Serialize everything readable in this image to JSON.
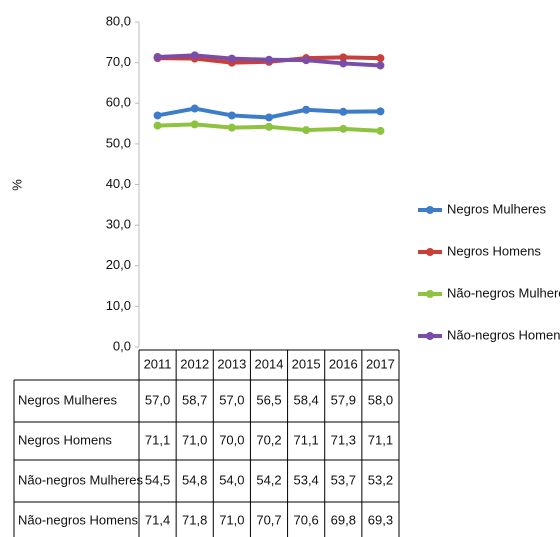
{
  "chart_data": {
    "type": "line",
    "y_label": "%",
    "categories": [
      "2011",
      "2012",
      "2013",
      "2014",
      "2015",
      "2016",
      "2017"
    ],
    "ylim": [
      0,
      80
    ],
    "yticks": [
      {
        "value": 0,
        "label": "0,0"
      },
      {
        "value": 10,
        "label": "10,0"
      },
      {
        "value": 20,
        "label": "20,0"
      },
      {
        "value": 30,
        "label": "30,0"
      },
      {
        "value": 40,
        "label": "40,0"
      },
      {
        "value": 50,
        "label": "50,0"
      },
      {
        "value": 60,
        "label": "60,0"
      },
      {
        "value": 70,
        "label": "70,0"
      },
      {
        "value": 80,
        "label": "80,0"
      }
    ],
    "series": [
      {
        "name": "Negros Mulheres",
        "color": "#3d7cc9",
        "values": [
          57.0,
          58.7,
          57.0,
          56.5,
          58.4,
          57.9,
          58.0
        ],
        "value_labels": [
          "57,0",
          "58,7",
          "57,0",
          "56,5",
          "58,4",
          "57,9",
          "58,0"
        ]
      },
      {
        "name": "Negros Homens",
        "color": "#c9403a",
        "values": [
          71.1,
          71.0,
          70.0,
          70.2,
          71.1,
          71.3,
          71.1
        ],
        "value_labels": [
          "71,1",
          "71,0",
          "70,0",
          "70,2",
          "71,1",
          "71,3",
          "71,1"
        ]
      },
      {
        "name": "Não-negros Mulheres",
        "color": "#8dc33f",
        "values": [
          54.5,
          54.8,
          54.0,
          54.2,
          53.4,
          53.7,
          53.2
        ],
        "value_labels": [
          "54,5",
          "54,8",
          "54,0",
          "54,2",
          "53,4",
          "53,7",
          "53,2"
        ]
      },
      {
        "name": "Não-negros Homens",
        "color": "#7a4ea8",
        "values": [
          71.4,
          71.8,
          71.0,
          70.7,
          70.6,
          69.8,
          69.3
        ],
        "value_labels": [
          "71,4",
          "71,8",
          "71,0",
          "70,7",
          "70,6",
          "69,8",
          "69,3"
        ]
      }
    ]
  }
}
